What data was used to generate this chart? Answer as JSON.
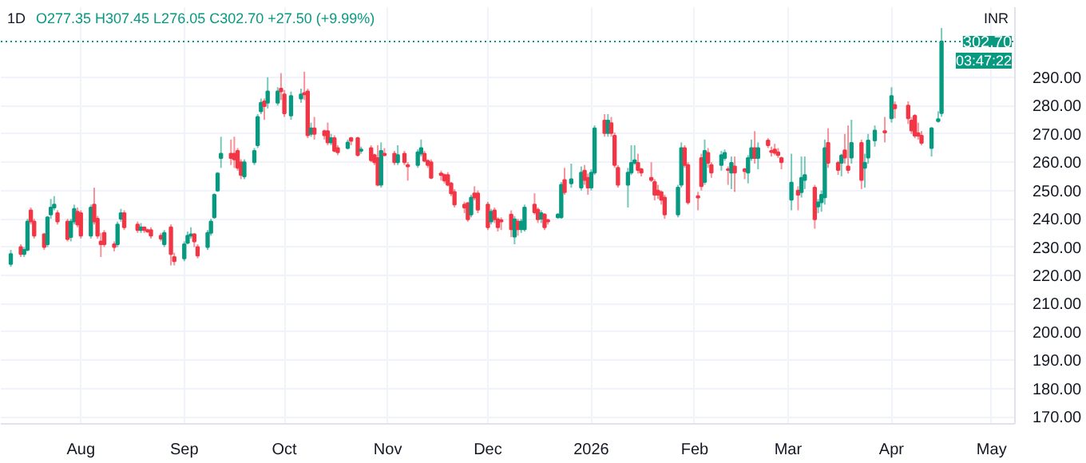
{
  "chart_data": {
    "type": "candlestick",
    "title": "1D",
    "annotations": [
      "O277.35 H307.45 L276.05 C302.70 +27.50 (+9.99%)",
      "03:47:22"
    ],
    "ylabel": "INR",
    "x": [
      "2025-07-11",
      "2025-07-14",
      "2025-07-15",
      "2025-07-16",
      "2025-07-17",
      "2025-07-18",
      "2025-07-21",
      "2025-07-22",
      "2025-07-23",
      "2025-07-24",
      "2025-07-25",
      "2025-07-28",
      "2025-07-29",
      "2025-07-30",
      "2025-07-31",
      "2025-08-01",
      "2025-08-04",
      "2025-08-05",
      "2025-08-06",
      "2025-08-07",
      "2025-08-08",
      "2025-08-11",
      "2025-08-12",
      "2025-08-13",
      "2025-08-14",
      "2025-08-18",
      "2025-08-19",
      "2025-08-20",
      "2025-08-21",
      "2025-08-22",
      "2025-08-25",
      "2025-08-26",
      "2025-08-28",
      "2025-08-29",
      "2025-09-01",
      "2025-09-02",
      "2025-09-03",
      "2025-09-04",
      "2025-09-05",
      "2025-09-08",
      "2025-09-09",
      "2025-09-10",
      "2025-09-11",
      "2025-09-12",
      "2025-09-15",
      "2025-09-16",
      "2025-09-17",
      "2025-09-18",
      "2025-09-19",
      "2025-09-22",
      "2025-09-23",
      "2025-09-24",
      "2025-09-25",
      "2025-09-26",
      "2025-09-29",
      "2025-09-30",
      "2025-10-01",
      "2025-10-03",
      "2025-10-06",
      "2025-10-07",
      "2025-10-08",
      "2025-10-09",
      "2025-10-10",
      "2025-10-13",
      "2025-10-14",
      "2025-10-15",
      "2025-10-16",
      "2025-10-17",
      "2025-10-20",
      "2025-10-21",
      "2025-10-23",
      "2025-10-24",
      "2025-10-27",
      "2025-10-28",
      "2025-10-29",
      "2025-10-30",
      "2025-10-31",
      "2025-11-03",
      "2025-11-04",
      "2025-11-06",
      "2025-11-07",
      "2025-11-10",
      "2025-11-11",
      "2025-11-12",
      "2025-11-13",
      "2025-11-14",
      "2025-11-17",
      "2025-11-18",
      "2025-11-19",
      "2025-11-20",
      "2025-11-21",
      "2025-11-24",
      "2025-11-25",
      "2025-11-26",
      "2025-11-27",
      "2025-11-28",
      "2025-12-01",
      "2025-12-02",
      "2025-12-03",
      "2025-12-04",
      "2025-12-05",
      "2025-12-08",
      "2025-12-09",
      "2025-12-10",
      "2025-12-11",
      "2025-12-12",
      "2025-12-15",
      "2025-12-16",
      "2025-12-17",
      "2025-12-18",
      "2025-12-19",
      "2025-12-22",
      "2025-12-23",
      "2025-12-24",
      "2025-12-26",
      "2025-12-29",
      "2025-12-30",
      "2025-12-31",
      "2026-01-01",
      "2026-01-02",
      "2026-01-05",
      "2026-01-06",
      "2026-01-07",
      "2026-01-08",
      "2026-01-09",
      "2026-01-12",
      "2026-01-13",
      "2026-01-14",
      "2026-01-15",
      "2026-01-16",
      "2026-01-19",
      "2026-01-20",
      "2026-01-21",
      "2026-01-22",
      "2026-01-23",
      "2026-01-27",
      "2026-01-28",
      "2026-01-29",
      "2026-01-30",
      "2026-02-02",
      "2026-02-03",
      "2026-02-04",
      "2026-02-05",
      "2026-02-06",
      "2026-02-09",
      "2026-02-10",
      "2026-02-11",
      "2026-02-12",
      "2026-02-13",
      "2026-02-16",
      "2026-02-17",
      "2026-02-18",
      "2026-02-19",
      "2026-02-20",
      "2026-02-23",
      "2026-02-24",
      "2026-02-25",
      "2026-02-26",
      "2026-02-27",
      "2026-03-02",
      "2026-03-04",
      "2026-03-05",
      "2026-03-06",
      "2026-03-09",
      "2026-03-10",
      "2026-03-11",
      "2026-03-12",
      "2026-03-13",
      "2026-03-16",
      "2026-03-17",
      "2026-03-18",
      "2026-03-19",
      "2026-03-20",
      "2026-03-23",
      "2026-03-24",
      "2026-03-25",
      "2026-03-27",
      "2026-03-30",
      "2026-04-01",
      "2026-04-02",
      "2026-04-06",
      "2026-04-07",
      "2026-04-08",
      "2026-04-09",
      "2026-04-10",
      "2026-04-13",
      "2026-04-15",
      "2026-04-16"
    ],
    "ohlc": [
      [
        224,
        229,
        223,
        227.5
      ],
      [
        230,
        231,
        226.5,
        227.5
      ],
      [
        227.5,
        230,
        226.5,
        229
      ],
      [
        229,
        240,
        228.5,
        239
      ],
      [
        243,
        244,
        238,
        239
      ],
      [
        239,
        240,
        233,
        234
      ],
      [
        234.5,
        235,
        229,
        230
      ],
      [
        231,
        241,
        230,
        240.5
      ],
      [
        241.5,
        247,
        240,
        244
      ],
      [
        244,
        248,
        243,
        245
      ],
      [
        242,
        243,
        238,
        239
      ],
      [
        239,
        240,
        232,
        232.8
      ],
      [
        233.5,
        240,
        232,
        239
      ],
      [
        239,
        245,
        238,
        243.5
      ],
      [
        242.5,
        244,
        237,
        238
      ],
      [
        242,
        243,
        233,
        234
      ],
      [
        234,
        245,
        233,
        244
      ],
      [
        245,
        251,
        238,
        239
      ],
      [
        240,
        241,
        233,
        234
      ],
      [
        232,
        235,
        226.5,
        231
      ],
      [
        235,
        236,
        230,
        231
      ],
      [
        231,
        232,
        228.5,
        230
      ],
      [
        231,
        239,
        230,
        238
      ],
      [
        240,
        243.5,
        239,
        242
      ],
      [
        242,
        243,
        236,
        237
      ],
      [
        238,
        239,
        235,
        236
      ],
      [
        236,
        238.5,
        235,
        237
      ],
      [
        237,
        237,
        235,
        236
      ],
      [
        236,
        236.5,
        235,
        235.5
      ],
      [
        236,
        237,
        233,
        234
      ],
      [
        234,
        235,
        232,
        233
      ],
      [
        231,
        236,
        230,
        235
      ],
      [
        237,
        238,
        223.5,
        227.5
      ],
      [
        226.5,
        228,
        223.5,
        225
      ],
      [
        226,
        232,
        225,
        231
      ],
      [
        231.5,
        235.5,
        231,
        234
      ],
      [
        234,
        237,
        233,
        234.5
      ],
      [
        234.5,
        235,
        230,
        232
      ],
      [
        230,
        231,
        226,
        227
      ],
      [
        230,
        236,
        229,
        235
      ],
      [
        235,
        240,
        234,
        239
      ],
      [
        240.5,
        249,
        240,
        248.5
      ],
      [
        250,
        256.5,
        249.5,
        256
      ],
      [
        261.5,
        269,
        258,
        263
      ],
      [
        263,
        268,
        259,
        261.5
      ],
      [
        263,
        269,
        258,
        261
      ],
      [
        264,
        265,
        257,
        258
      ],
      [
        260,
        261,
        254,
        255.5
      ],
      [
        255,
        261,
        254,
        260
      ],
      [
        260,
        265,
        259,
        264
      ],
      [
        266,
        277,
        265,
        276
      ],
      [
        278,
        282.5,
        277,
        281
      ],
      [
        281.5,
        282.5,
        275,
        279.8
      ],
      [
        281,
        290,
        279,
        285
      ],
      [
        281,
        286.5,
        280,
        285
      ],
      [
        286,
        291.5,
        282,
        285
      ],
      [
        284,
        285.5,
        276,
        277.3
      ],
      [
        276.5,
        285,
        275,
        283.4
      ],
      [
        282.5,
        286,
        281,
        284
      ],
      [
        284.5,
        292,
        282,
        284
      ],
      [
        285,
        286,
        268.5,
        269.5
      ],
      [
        270,
        274,
        269,
        272
      ],
      [
        272,
        276,
        268,
        270
      ],
      [
        271,
        271.5,
        268,
        269.5
      ],
      [
        271,
        274,
        266,
        267
      ],
      [
        267,
        270,
        266,
        268.5
      ],
      [
        268.5,
        269.5,
        263.5,
        264
      ],
      [
        265,
        266,
        262.5,
        263.5
      ],
      [
        265,
        268,
        264.5,
        267
      ],
      [
        268.5,
        269,
        266,
        267.5
      ],
      [
        268.5,
        269,
        262,
        262.5
      ],
      [
        264,
        265.5,
        263,
        264.5
      ],
      [
        265,
        266,
        260,
        260.7
      ],
      [
        262.5,
        263,
        259,
        260
      ],
      [
        261.5,
        266,
        251.5,
        252
      ],
      [
        252,
        267,
        251,
        264
      ],
      [
        263,
        265,
        262,
        262.5
      ],
      [
        263,
        264,
        259,
        260
      ],
      [
        260,
        266,
        259,
        262.5
      ],
      [
        263,
        264,
        259,
        260
      ],
      [
        259,
        260,
        253.5,
        258.5
      ],
      [
        259,
        264.5,
        258,
        263.5
      ],
      [
        263,
        268,
        262,
        265
      ],
      [
        263,
        264,
        260,
        260.5
      ],
      [
        260.5,
        261,
        258,
        259
      ],
      [
        260,
        261,
        254,
        254.5
      ],
      [
        256,
        257,
        253.5,
        255.5
      ],
      [
        255.5,
        256,
        252.5,
        253.5
      ],
      [
        255.5,
        256.5,
        251.5,
        252
      ],
      [
        252.5,
        253,
        248,
        249
      ],
      [
        249.5,
        250.5,
        244,
        245
      ],
      [
        245,
        246,
        242,
        244
      ],
      [
        245.5,
        246,
        239,
        239.8
      ],
      [
        241.5,
        248.5,
        240.5,
        247.5
      ],
      [
        249,
        251.5,
        246.5,
        247.5
      ],
      [
        249,
        250,
        242,
        243.2
      ],
      [
        245,
        246,
        236,
        237
      ],
      [
        239,
        243.5,
        238,
        242.5
      ],
      [
        243,
        244,
        238.5,
        239.8
      ],
      [
        239.8,
        240.5,
        235.5,
        237
      ],
      [
        239.5,
        240.5,
        236,
        239
      ],
      [
        241.5,
        243,
        233.5,
        236.3
      ],
      [
        233.7,
        241,
        231,
        239.8
      ],
      [
        239,
        240,
        234,
        236.3
      ],
      [
        236.3,
        240,
        235,
        239
      ],
      [
        236.3,
        245,
        235.5,
        244
      ],
      [
        245,
        249,
        241.5,
        242.3
      ],
      [
        243.2,
        244,
        238.5,
        239.8
      ],
      [
        240,
        243,
        238.5,
        242
      ],
      [
        241.5,
        242,
        236,
        237
      ],
      [
        239.5,
        240,
        238,
        239
      ],
      [
        240.5,
        242,
        240,
        241.5
      ],
      [
        240.5,
        253,
        240,
        252
      ],
      [
        253.7,
        258,
        248.5,
        249.4
      ],
      [
        252.5,
        259.5,
        251,
        254
      ],
      [
        251,
        258.5,
        250,
        256.3
      ],
      [
        257,
        259,
        252,
        253.7
      ],
      [
        254.5,
        256,
        248.5,
        251
      ],
      [
        251,
        257.5,
        250,
        256.3
      ],
      [
        256.3,
        273,
        255.5,
        272
      ],
      [
        274.7,
        277,
        269,
        270.3
      ],
      [
        270.3,
        277,
        269,
        274.7
      ],
      [
        273.8,
        276,
        269,
        270.3
      ],
      [
        269.4,
        270.5,
        258,
        259
      ],
      [
        258,
        259,
        251,
        252
      ],
      [
        252,
        258,
        244,
        256.3
      ],
      [
        256.3,
        266,
        255.5,
        259.8
      ],
      [
        259.8,
        266,
        259,
        260.7
      ],
      [
        259.8,
        263,
        256,
        257.2
      ],
      [
        257.5,
        258,
        255,
        256.3
      ],
      [
        254.5,
        260,
        253,
        253.7
      ],
      [
        253,
        254,
        246.5,
        248.5
      ],
      [
        250,
        252,
        247,
        248.5
      ],
      [
        249.4,
        250,
        245,
        246.7
      ],
      [
        247.5,
        248.5,
        240,
        241.5
      ],
      [
        241.5,
        252,
        240.5,
        251
      ],
      [
        252,
        267,
        251,
        265
      ],
      [
        265,
        266,
        258,
        259
      ],
      [
        259,
        260,
        245,
        245.8
      ],
      [
        248,
        249.5,
        243,
        247.5
      ],
      [
        261.5,
        263,
        250,
        251.5
      ],
      [
        253,
        268,
        252,
        264
      ],
      [
        263.3,
        265,
        258,
        259.8
      ],
      [
        259,
        260,
        254.5,
        256.3
      ],
      [
        259,
        264,
        257,
        262.5
      ],
      [
        261.5,
        264.5,
        260.5,
        263.3
      ],
      [
        257.5,
        258.5,
        252,
        257.2
      ],
      [
        256.3,
        262,
        250.5,
        259.8
      ],
      [
        258.5,
        262,
        249.5,
        256.3
      ],
      [
        257.5,
        258,
        254,
        256.8
      ],
      [
        256.3,
        262.5,
        252.5,
        261.5
      ],
      [
        261.5,
        268,
        260.5,
        265
      ],
      [
        265,
        271,
        259.5,
        261.5
      ],
      [
        261.5,
        267,
        257.5,
        265
      ],
      [
        267.7,
        268.5,
        265,
        266
      ],
      [
        264,
        265.5,
        262,
        263.6
      ],
      [
        264.5,
        266.5,
        262.5,
        263.3
      ],
      [
        263.5,
        265,
        261.5,
        262.5
      ],
      [
        261.5,
        262,
        257.5,
        260
      ],
      [
        246.7,
        263,
        243,
        252.8
      ],
      [
        250,
        251.5,
        243,
        248.5
      ],
      [
        249.4,
        262,
        247.5,
        254.5
      ],
      [
        253.7,
        262,
        250.5,
        255.5
      ],
      [
        251,
        252,
        236.5,
        239.8
      ],
      [
        244.3,
        247,
        242,
        245.8
      ],
      [
        245.8,
        250,
        242.5,
        248.5
      ],
      [
        247.6,
        268,
        245,
        265
      ],
      [
        266.8,
        272,
        258,
        259.8
      ],
      [
        259.8,
        260.5,
        255.5,
        257.2
      ],
      [
        259.8,
        263,
        255,
        262.4
      ],
      [
        264.2,
        270,
        259.5,
        261.6
      ],
      [
        258.5,
        273,
        256,
        257.2
      ],
      [
        261.6,
        275,
        259.5,
        266.8
      ],
      [
        266.8,
        268,
        250.5,
        253.7
      ],
      [
        258,
        263,
        251,
        259.8
      ],
      [
        261.6,
        270,
        259.5,
        267.7
      ],
      [
        267.7,
        273,
        265.5,
        271.2
      ],
      [
        271,
        276,
        267,
        270.5
      ],
      [
        275.5,
        286.5,
        274,
        283.4
      ],
      [
        280.2,
        281.5,
        275.5,
        279
      ],
      [
        280,
        281.5,
        273.5,
        275.5
      ],
      [
        274.7,
        276,
        270,
        271.2
      ],
      [
        276.4,
        277,
        268.5,
        269.4
      ],
      [
        270.3,
        274,
        268,
        269.4
      ],
      [
        269.4,
        271,
        266,
        266.8
      ],
      [
        265,
        272.5,
        262,
        272
      ],
      [
        274.5,
        278,
        274,
        275.2
      ],
      [
        277.35,
        307.45,
        276.05,
        302.7
      ]
    ],
    "xlim": [
      "2025-07-08",
      "2026-05-08"
    ],
    "xticks": [
      {
        "value": "2025-08-01",
        "label": "Aug"
      },
      {
        "value": "2025-09-01",
        "label": "Sep"
      },
      {
        "value": "2025-10-01",
        "label": "Oct"
      },
      {
        "value": "2025-11-01",
        "label": "Nov"
      },
      {
        "value": "2025-12-01",
        "label": "Dec"
      },
      {
        "value": "2026-01-01",
        "label": "2026"
      },
      {
        "value": "2026-02-01",
        "label": "Feb"
      },
      {
        "value": "2026-03-01",
        "label": "Mar"
      },
      {
        "value": "2026-04-01",
        "label": "Apr"
      },
      {
        "value": "2026-05-01",
        "label": "May"
      }
    ],
    "ylim": [
      167.5,
      314.8
    ],
    "yticks": [
      {
        "value": 170,
        "label": "170.00"
      },
      {
        "value": 180,
        "label": "180.00"
      },
      {
        "value": 190,
        "label": "190.00"
      },
      {
        "value": 200,
        "label": "200.00"
      },
      {
        "value": 210,
        "label": "210.00"
      },
      {
        "value": 220,
        "label": "220.00"
      },
      {
        "value": 230,
        "label": "230.00"
      },
      {
        "value": 240,
        "label": "240.00"
      },
      {
        "value": 250,
        "label": "250.00"
      },
      {
        "value": 260,
        "label": "260.00"
      },
      {
        "value": 270,
        "label": "270.00"
      },
      {
        "value": 280,
        "label": "280.00"
      },
      {
        "value": 290,
        "label": "290.00"
      }
    ],
    "ref_lines": [
      {
        "axis": "y",
        "value": 302.7,
        "label": "302.70",
        "color": "#089981",
        "line_style": "dotted"
      }
    ],
    "grid": true
  }
}
